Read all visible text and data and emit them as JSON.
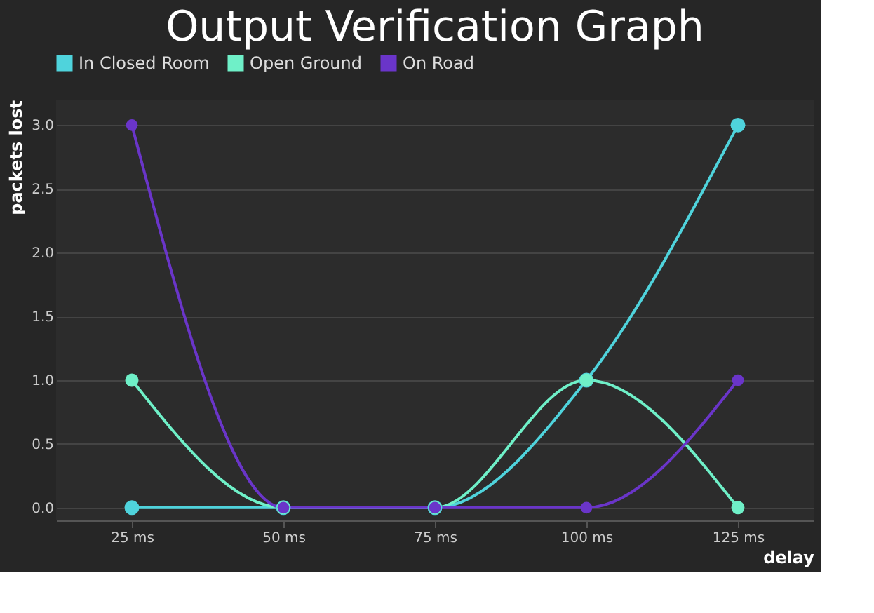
{
  "chart_data": {
    "type": "line",
    "title": "Output Verification Graph",
    "xlabel": "delay",
    "ylabel": "packets lost",
    "categories": [
      "25 ms",
      "50 ms",
      "75 ms",
      "100 ms",
      "125 ms"
    ],
    "series": [
      {
        "name": "In Closed Room",
        "color": "#4fd3dc",
        "values": [
          0,
          0,
          0,
          1,
          3
        ]
      },
      {
        "name": "Open Ground",
        "color": "#6ff0c8",
        "values": [
          1,
          0,
          0,
          1,
          0
        ]
      },
      {
        "name": "On Road",
        "color": "#6a35c9",
        "values": [
          3,
          0,
          0,
          0,
          1
        ]
      }
    ],
    "ylim": [
      -0.1,
      3.2
    ],
    "yticks": [
      {
        "value": 0,
        "label": "0.0"
      },
      {
        "value": 0.5,
        "label": "0.5"
      },
      {
        "value": 1,
        "label": "1.0"
      },
      {
        "value": 1.5,
        "label": "1.5"
      },
      {
        "value": 2,
        "label": "2.0"
      },
      {
        "value": 2.5,
        "label": "2.5"
      },
      {
        "value": 3,
        "label": "3.0"
      }
    ],
    "grid": "y",
    "legend": "top",
    "marker": "circle",
    "line_style": "solid"
  }
}
